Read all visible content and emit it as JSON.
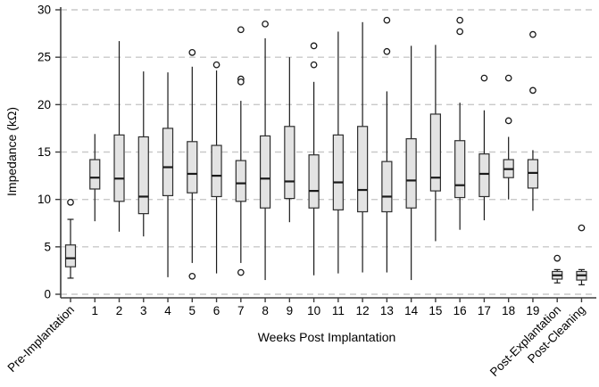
{
  "figure": {
    "title": "",
    "xlabel": "Weeks Post Implantation",
    "ylabel": "Impedance (kΩ)"
  },
  "chart_data": {
    "type": "boxplot",
    "title": "",
    "xlabel": "Weeks Post Implantation",
    "ylabel": "Impedance (kΩ)",
    "ylim": [
      0,
      30
    ],
    "y_ticks": [
      0,
      5,
      10,
      15,
      20,
      25,
      30
    ],
    "grid": "horizontal-dashed",
    "legend": "none",
    "categories": [
      "Pre-Implantation",
      "1",
      "2",
      "3",
      "4",
      "5",
      "6",
      "7",
      "8",
      "9",
      "10",
      "11",
      "12",
      "13",
      "14",
      "15",
      "16",
      "17",
      "18",
      "19",
      "Post-Explantation",
      "Post-Cleaning"
    ],
    "rotated_category_labels": [
      "Pre-Implantation",
      "Post-Explantation",
      "Post-Cleaning"
    ],
    "boxes": [
      {
        "label": "Pre-Implantation",
        "whisker_low": 1.7,
        "q1": 2.9,
        "median": 3.8,
        "q3": 5.2,
        "whisker_high": 7.9,
        "outliers": [
          9.7
        ],
        "caps": true
      },
      {
        "label": "1",
        "whisker_low": 7.7,
        "q1": 11.1,
        "median": 12.3,
        "q3": 14.2,
        "whisker_high": 16.9,
        "outliers": [],
        "caps": false
      },
      {
        "label": "2",
        "whisker_low": 6.6,
        "q1": 9.8,
        "median": 12.2,
        "q3": 16.8,
        "whisker_high": 26.7,
        "outliers": [],
        "caps": false
      },
      {
        "label": "3",
        "whisker_low": 6.1,
        "q1": 8.5,
        "median": 10.3,
        "q3": 16.6,
        "whisker_high": 23.5,
        "outliers": [],
        "caps": false
      },
      {
        "label": "4",
        "whisker_low": 1.8,
        "q1": 10.4,
        "median": 13.4,
        "q3": 17.5,
        "whisker_high": 23.4,
        "outliers": [],
        "caps": false
      },
      {
        "label": "5",
        "whisker_low": 3.3,
        "q1": 10.7,
        "median": 12.7,
        "q3": 16.1,
        "whisker_high": 24.0,
        "outliers": [
          25.5,
          1.9
        ],
        "caps": false
      },
      {
        "label": "6",
        "whisker_low": 2.2,
        "q1": 10.3,
        "median": 12.5,
        "q3": 15.7,
        "whisker_high": 23.6,
        "outliers": [
          24.2
        ],
        "caps": false
      },
      {
        "label": "7",
        "whisker_low": 3.3,
        "q1": 9.8,
        "median": 11.7,
        "q3": 14.1,
        "whisker_high": 20.4,
        "outliers": [
          27.9,
          22.7,
          22.4,
          2.3
        ],
        "caps": false
      },
      {
        "label": "8",
        "whisker_low": 1.5,
        "q1": 9.1,
        "median": 12.2,
        "q3": 16.7,
        "whisker_high": 27.0,
        "outliers": [
          28.5
        ],
        "caps": false
      },
      {
        "label": "9",
        "whisker_low": 7.6,
        "q1": 10.1,
        "median": 11.9,
        "q3": 17.7,
        "whisker_high": 25.0,
        "outliers": [],
        "caps": false
      },
      {
        "label": "10",
        "whisker_low": 2.0,
        "q1": 9.1,
        "median": 10.9,
        "q3": 14.7,
        "whisker_high": 22.4,
        "outliers": [
          26.2,
          24.2
        ],
        "caps": false
      },
      {
        "label": "11",
        "whisker_low": 2.2,
        "q1": 8.9,
        "median": 11.8,
        "q3": 16.8,
        "whisker_high": 27.7,
        "outliers": [],
        "caps": false
      },
      {
        "label": "12",
        "whisker_low": 2.3,
        "q1": 8.7,
        "median": 11.0,
        "q3": 17.7,
        "whisker_high": 28.7,
        "outliers": [],
        "caps": false
      },
      {
        "label": "13",
        "whisker_low": 2.3,
        "q1": 8.7,
        "median": 10.3,
        "q3": 14.0,
        "whisker_high": 21.4,
        "outliers": [
          28.9,
          25.6
        ],
        "caps": false
      },
      {
        "label": "14",
        "whisker_low": 1.5,
        "q1": 9.1,
        "median": 12.0,
        "q3": 16.4,
        "whisker_high": 26.2,
        "outliers": [],
        "caps": false
      },
      {
        "label": "15",
        "whisker_low": 5.6,
        "q1": 10.9,
        "median": 12.3,
        "q3": 19.0,
        "whisker_high": 26.3,
        "outliers": [],
        "caps": false
      },
      {
        "label": "16",
        "whisker_low": 6.8,
        "q1": 10.2,
        "median": 11.5,
        "q3": 16.2,
        "whisker_high": 20.2,
        "outliers": [
          28.9,
          27.7
        ],
        "caps": false
      },
      {
        "label": "17",
        "whisker_low": 7.8,
        "q1": 10.3,
        "median": 12.7,
        "q3": 14.8,
        "whisker_high": 19.4,
        "outliers": [
          22.8
        ],
        "caps": false
      },
      {
        "label": "18",
        "whisker_low": 10.0,
        "q1": 12.3,
        "median": 13.2,
        "q3": 14.2,
        "whisker_high": 16.6,
        "outliers": [
          22.8,
          18.3
        ],
        "caps": false
      },
      {
        "label": "19",
        "whisker_low": 8.8,
        "q1": 11.2,
        "median": 12.8,
        "q3": 14.2,
        "whisker_high": 15.2,
        "outliers": [
          27.4,
          21.5
        ],
        "caps": false
      },
      {
        "label": "Post-Explantation",
        "whisker_low": 1.2,
        "q1": 1.6,
        "median": 2.0,
        "q3": 2.4,
        "whisker_high": 2.6,
        "outliers": [
          3.8
        ],
        "caps": true
      },
      {
        "label": "Post-Cleaning",
        "whisker_low": 1.0,
        "q1": 1.5,
        "median": 2.0,
        "q3": 2.4,
        "whisker_high": 2.6,
        "outliers": [
          7.0
        ],
        "caps": true
      }
    ],
    "colors": {
      "background": "#ffffff",
      "box_fill": "#e3e3e3",
      "box_stroke": "#2e2e2e",
      "median": "#1a1a1a",
      "whisker": "#1a1a1a",
      "outlier_stroke": "#1a1a1a",
      "grid": "#c9c9c9",
      "axis": "#3c3c3c",
      "text": "#000000"
    }
  }
}
